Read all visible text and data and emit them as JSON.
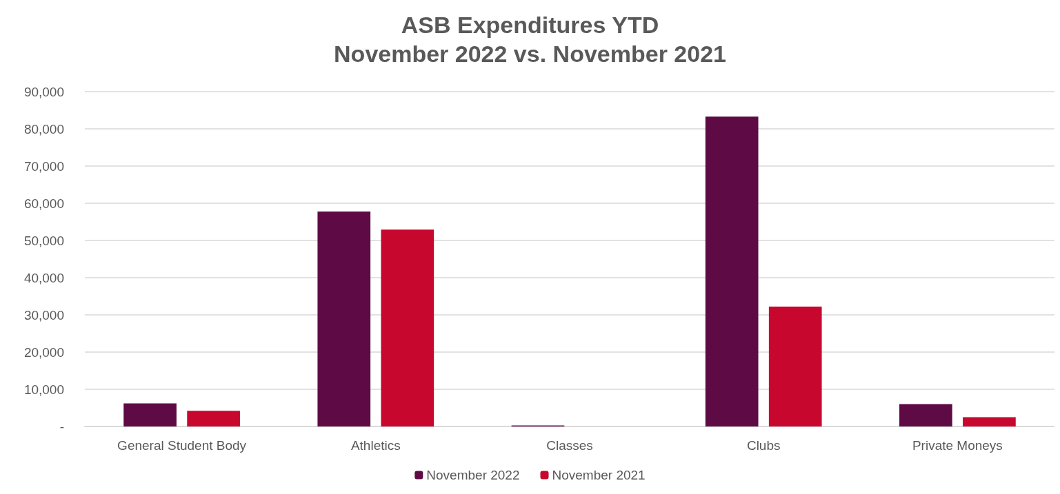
{
  "chart_data": {
    "type": "bar",
    "title": "ASB Expenditures YTD\nNovember 2022 vs. November 2021",
    "categories": [
      "General Student Body",
      "Athletics",
      "Classes",
      "Clubs",
      "Private Moneys"
    ],
    "series": [
      {
        "name": "November 2022",
        "color": "#5e0a45",
        "values": [
          6200,
          57800,
          300,
          83300,
          6000
        ]
      },
      {
        "name": "November 2021",
        "color": "#c8072f",
        "values": [
          4200,
          52900,
          0,
          32200,
          2500
        ]
      }
    ],
    "ylim": [
      0,
      90000
    ],
    "yticks": [
      {
        "value": 0,
        "label": "-"
      },
      {
        "value": 10000,
        "label": "10,000"
      },
      {
        "value": 20000,
        "label": "20,000"
      },
      {
        "value": 30000,
        "label": "30,000"
      },
      {
        "value": 40000,
        "label": "40,000"
      },
      {
        "value": 50000,
        "label": "50,000"
      },
      {
        "value": 60000,
        "label": "60,000"
      },
      {
        "value": 70000,
        "label": "70,000"
      },
      {
        "value": 80000,
        "label": "80,000"
      },
      {
        "value": 90000,
        "label": "90,000"
      }
    ],
    "grid": "y",
    "legend": "bottom"
  }
}
